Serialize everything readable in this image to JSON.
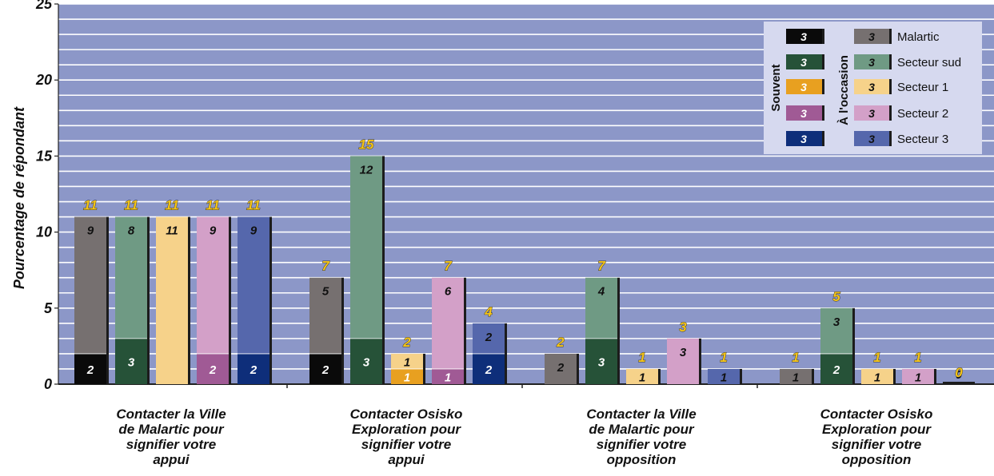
{
  "chart_data": {
    "type": "bar",
    "stacked": true,
    "ylabel": "Pourcentage de répondant",
    "ylim": [
      0,
      25
    ],
    "yticks": [
      "0",
      "5",
      "10",
      "15",
      "20",
      "25"
    ],
    "grid": true,
    "legend_position": "top-right",
    "categories": [
      "Contacter la Ville\nde Malartic pour\nsignifier votre\nappui",
      "Contacter Osisko\nExploration pour\nsignifier votre\nappui",
      "Contacter la Ville\nde Malartic pour\nsignifier votre\nopposition",
      "Contacter Osisko\nExploration pour\nsignifier votre\nopposition"
    ],
    "groups": [
      "Malartic",
      "Secteur sud",
      "Secteur 1",
      "Secteur 2",
      "Secteur 3"
    ],
    "series": [
      {
        "name": "Souvent",
        "values": [
          [
            2,
            3,
            0,
            2,
            2
          ],
          [
            2,
            3,
            1,
            1,
            2
          ],
          [
            0,
            3,
            0,
            0,
            0
          ],
          [
            0,
            2,
            0,
            0,
            0
          ]
        ]
      },
      {
        "name": "À l'occasion",
        "values": [
          [
            9,
            8,
            11,
            9,
            9
          ],
          [
            5,
            12,
            1,
            6,
            2
          ],
          [
            2,
            4,
            1,
            3,
            1
          ],
          [
            1,
            3,
            1,
            1,
            0
          ]
        ]
      }
    ],
    "segment_labels": {
      "souvent": [
        [
          "2",
          "3",
          "",
          "2",
          "2"
        ],
        [
          "2",
          "3",
          "1",
          "1",
          "2"
        ],
        [
          "",
          "3",
          "",
          "",
          ""
        ],
        [
          "",
          "2",
          "",
          "",
          ""
        ]
      ],
      "occasion": [
        [
          "9",
          "8",
          "11",
          "9",
          "9"
        ],
        [
          "5",
          "12",
          "1",
          "6",
          "2"
        ],
        [
          "2",
          "4",
          "1",
          "3",
          "1"
        ],
        [
          "1",
          "3",
          "1",
          "1",
          "0"
        ]
      ]
    },
    "totals": [
      [
        11,
        11,
        11,
        11,
        11
      ],
      [
        7,
        15,
        2,
        7,
        4
      ],
      [
        2,
        7,
        1,
        3,
        1
      ],
      [
        1,
        5,
        1,
        1,
        0
      ]
    ],
    "legend": {
      "often_header": "Souvent",
      "occasion_header": "À l'occasion",
      "swatch_value": "3",
      "entries": [
        "Malartic",
        "Secteur sud",
        "Secteur 1",
        "Secteur 2",
        "Secteur 3"
      ]
    },
    "colors": {
      "background": "#8c97c8",
      "gridline": "#ffffff",
      "legend_bg": "#d6d9ef",
      "souvent": [
        "#0a0a0a",
        "#265238",
        "#e8a020",
        "#a05a95",
        "#0e2e7a"
      ],
      "occasion": [
        "#767070",
        "#6f9a84",
        "#f6d28a",
        "#d3a0c8",
        "#5567ac"
      ]
    }
  }
}
